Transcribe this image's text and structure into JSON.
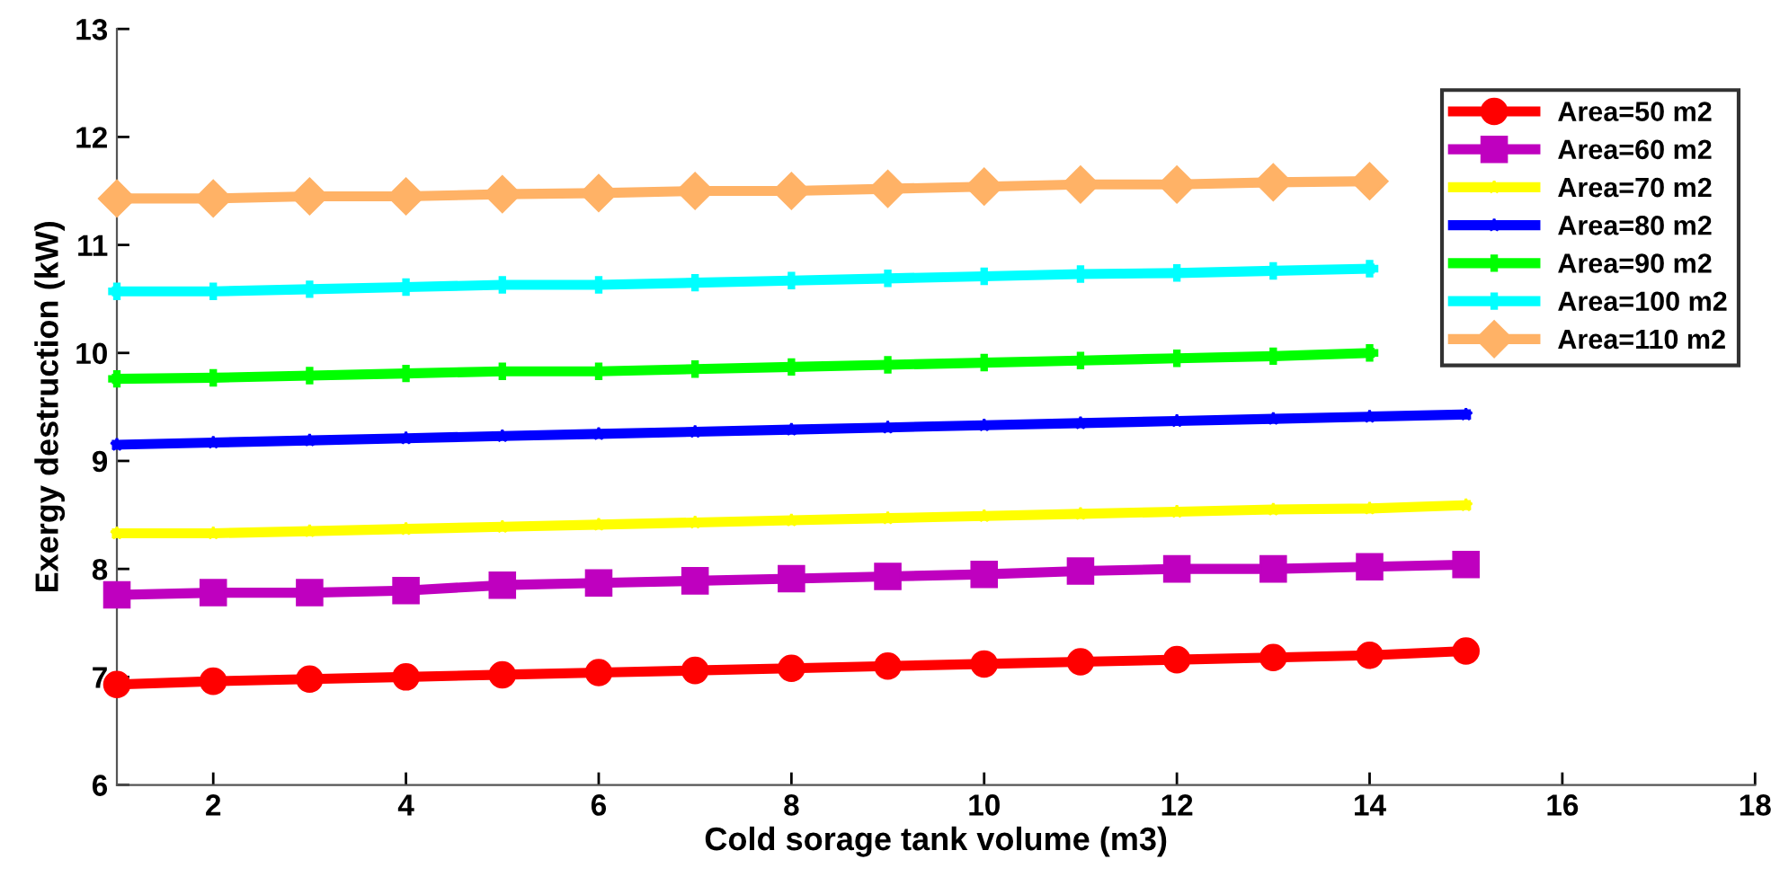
{
  "chart_data": {
    "type": "line",
    "xlabel": "Cold sorage tank volume (m3)",
    "ylabel": "Exergy destruction (kW)",
    "x": [
      1,
      2,
      3,
      4,
      5,
      6,
      7,
      8,
      9,
      10,
      11,
      12,
      13,
      14,
      15
    ],
    "xlim": [
      1,
      18
    ],
    "xticks": [
      2,
      4,
      6,
      8,
      10,
      12,
      14,
      16,
      18
    ],
    "ylim": [
      6,
      13
    ],
    "yticks": [
      6,
      7,
      8,
      9,
      10,
      11,
      12,
      13
    ],
    "grid": false,
    "legend": "top right",
    "line_style": "solid",
    "series": [
      {
        "name": "Area=50 m2",
        "color": "#ff0000",
        "marker": "circle",
        "values": [
          6.93,
          6.96,
          6.98,
          7.0,
          7.02,
          7.04,
          7.06,
          7.08,
          7.1,
          7.12,
          7.14,
          7.16,
          7.18,
          7.2,
          7.24
        ]
      },
      {
        "name": "Area=60 m2",
        "color": "#bf00bf",
        "marker": "square",
        "values": [
          7.76,
          7.78,
          7.78,
          7.8,
          7.85,
          7.87,
          7.89,
          7.91,
          7.93,
          7.95,
          7.98,
          8.0,
          8.0,
          8.02,
          8.04
        ]
      },
      {
        "name": "Area=70 m2",
        "color": "#ffff00",
        "marker": "star",
        "values": [
          8.33,
          8.33,
          8.35,
          8.37,
          8.39,
          8.41,
          8.43,
          8.45,
          8.47,
          8.49,
          8.51,
          8.53,
          8.55,
          8.56,
          8.59
        ]
      },
      {
        "name": "Area=80 m2",
        "color": "#0000ff",
        "marker": "star",
        "values": [
          9.15,
          9.17,
          9.19,
          9.21,
          9.23,
          9.25,
          9.27,
          9.29,
          9.31,
          9.33,
          9.35,
          9.37,
          9.39,
          9.41,
          9.43
        ]
      },
      {
        "name": "Area=90 m2",
        "color": "#00ff00",
        "marker": "cross",
        "values": [
          9.76,
          9.77,
          9.79,
          9.81,
          9.83,
          9.83,
          9.85,
          9.87,
          9.89,
          9.91,
          9.93,
          9.95,
          9.97,
          10.0,
          null
        ]
      },
      {
        "name": "Area=100 m2",
        "color": "#00ffff",
        "marker": "cross",
        "values": [
          10.57,
          10.57,
          10.59,
          10.61,
          10.63,
          10.63,
          10.65,
          10.67,
          10.69,
          10.71,
          10.73,
          10.74,
          10.76,
          10.78,
          null
        ]
      },
      {
        "name": "Area=110 m2",
        "color": "#ffb266",
        "marker": "diamond",
        "values": [
          11.43,
          11.43,
          11.45,
          11.45,
          11.47,
          11.48,
          11.5,
          11.5,
          11.52,
          11.54,
          11.56,
          11.56,
          11.58,
          11.59,
          null
        ]
      }
    ]
  }
}
